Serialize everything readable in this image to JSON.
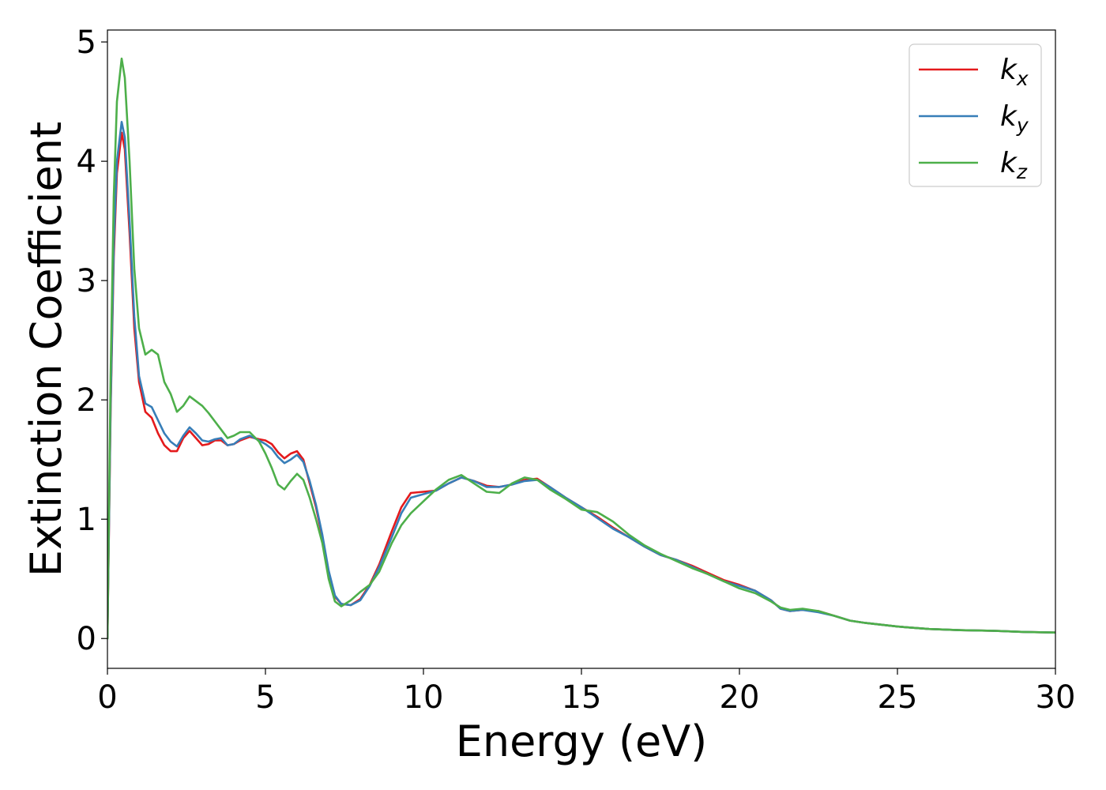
{
  "chart_data": {
    "type": "line",
    "title": "",
    "xlabel": "Energy (eV)",
    "ylabel": "Extinction Coefficient",
    "xlim": [
      0,
      30
    ],
    "ylim": [
      -0.25,
      5.1
    ],
    "xticks": [
      "0",
      "5",
      "10",
      "15",
      "20",
      "25",
      "30"
    ],
    "yticks": [
      "0",
      "1",
      "2",
      "3",
      "4",
      "5"
    ],
    "grid": false,
    "legend_position": "top-right",
    "series": [
      {
        "name": "k",
        "subscript": "x",
        "color": "#e41a1c",
        "x": [
          0,
          0.1,
          0.2,
          0.3,
          0.45,
          0.55,
          0.7,
          0.85,
          1.0,
          1.2,
          1.4,
          1.6,
          1.8,
          2.0,
          2.2,
          2.4,
          2.6,
          2.8,
          3.0,
          3.2,
          3.4,
          3.6,
          3.8,
          4.0,
          4.2,
          4.5,
          4.8,
          5.0,
          5.2,
          5.4,
          5.6,
          5.8,
          6.0,
          6.2,
          6.4,
          6.6,
          6.8,
          7.0,
          7.2,
          7.4,
          7.7,
          8.0,
          8.3,
          8.6,
          9.0,
          9.3,
          9.6,
          10.0,
          10.4,
          10.8,
          11.2,
          11.6,
          12.0,
          12.4,
          12.8,
          13.2,
          13.6,
          14.0,
          14.5,
          15.0,
          15.5,
          16.0,
          16.5,
          17.0,
          17.5,
          18.0,
          18.5,
          19.0,
          19.5,
          20.0,
          20.5,
          21.0,
          21.3,
          21.6,
          22.0,
          22.5,
          23.0,
          23.5,
          24.0,
          25.0,
          26.0,
          27.0,
          28.0,
          29.0,
          30.0
        ],
        "y": [
          0.0,
          1.9,
          3.2,
          3.9,
          4.24,
          4.1,
          3.4,
          2.6,
          2.15,
          1.9,
          1.85,
          1.72,
          1.62,
          1.57,
          1.57,
          1.68,
          1.74,
          1.68,
          1.62,
          1.63,
          1.66,
          1.66,
          1.62,
          1.63,
          1.66,
          1.69,
          1.67,
          1.66,
          1.63,
          1.56,
          1.51,
          1.55,
          1.57,
          1.5,
          1.3,
          1.1,
          0.85,
          0.55,
          0.35,
          0.29,
          0.28,
          0.33,
          0.45,
          0.62,
          0.9,
          1.1,
          1.22,
          1.23,
          1.24,
          1.3,
          1.35,
          1.32,
          1.28,
          1.27,
          1.29,
          1.33,
          1.34,
          1.27,
          1.18,
          1.1,
          1.02,
          0.93,
          0.85,
          0.77,
          0.7,
          0.66,
          0.61,
          0.55,
          0.49,
          0.45,
          0.4,
          0.32,
          0.25,
          0.23,
          0.24,
          0.23,
          0.19,
          0.15,
          0.13,
          0.1,
          0.08,
          0.07,
          0.065,
          0.055,
          0.05
        ]
      },
      {
        "name": "k",
        "subscript": "y",
        "color": "#377eb8",
        "x": [
          0,
          0.1,
          0.2,
          0.3,
          0.45,
          0.55,
          0.7,
          0.85,
          1.0,
          1.2,
          1.4,
          1.6,
          1.8,
          2.0,
          2.2,
          2.4,
          2.6,
          2.8,
          3.0,
          3.2,
          3.4,
          3.6,
          3.8,
          4.0,
          4.2,
          4.5,
          4.8,
          5.0,
          5.2,
          5.4,
          5.6,
          5.8,
          6.0,
          6.2,
          6.4,
          6.6,
          6.8,
          7.0,
          7.2,
          7.4,
          7.7,
          8.0,
          8.3,
          8.6,
          9.0,
          9.3,
          9.6,
          10.0,
          10.4,
          10.8,
          11.2,
          11.6,
          12.0,
          12.4,
          12.8,
          13.2,
          13.6,
          14.0,
          14.5,
          15.0,
          15.5,
          16.0,
          16.5,
          17.0,
          17.5,
          18.0,
          18.5,
          19.0,
          19.5,
          20.0,
          20.5,
          21.0,
          21.3,
          21.6,
          22.0,
          22.5,
          23.0,
          23.5,
          24.0,
          25.0,
          26.0,
          27.0,
          28.0,
          29.0,
          30.0
        ],
        "y": [
          0.0,
          1.95,
          3.3,
          4.0,
          4.33,
          4.2,
          3.5,
          2.7,
          2.2,
          1.97,
          1.94,
          1.83,
          1.72,
          1.65,
          1.61,
          1.7,
          1.77,
          1.72,
          1.66,
          1.65,
          1.67,
          1.68,
          1.62,
          1.63,
          1.67,
          1.7,
          1.66,
          1.63,
          1.59,
          1.52,
          1.47,
          1.5,
          1.54,
          1.48,
          1.32,
          1.12,
          0.87,
          0.57,
          0.36,
          0.29,
          0.28,
          0.32,
          0.44,
          0.6,
          0.85,
          1.05,
          1.18,
          1.21,
          1.24,
          1.3,
          1.35,
          1.32,
          1.27,
          1.27,
          1.29,
          1.32,
          1.33,
          1.27,
          1.18,
          1.1,
          1.01,
          0.92,
          0.85,
          0.77,
          0.7,
          0.66,
          0.6,
          0.54,
          0.48,
          0.44,
          0.4,
          0.32,
          0.25,
          0.23,
          0.24,
          0.22,
          0.19,
          0.15,
          0.13,
          0.1,
          0.08,
          0.07,
          0.065,
          0.055,
          0.05
        ]
      },
      {
        "name": "k",
        "subscript": "z",
        "color": "#4daf4a",
        "x": [
          0,
          0.1,
          0.2,
          0.3,
          0.45,
          0.55,
          0.7,
          0.85,
          1.0,
          1.2,
          1.4,
          1.6,
          1.8,
          2.0,
          2.2,
          2.4,
          2.6,
          2.8,
          3.0,
          3.2,
          3.4,
          3.6,
          3.8,
          4.0,
          4.2,
          4.5,
          4.8,
          5.0,
          5.2,
          5.4,
          5.6,
          5.8,
          6.0,
          6.2,
          6.4,
          6.6,
          6.8,
          7.0,
          7.2,
          7.4,
          7.7,
          8.0,
          8.3,
          8.6,
          9.0,
          9.3,
          9.6,
          10.0,
          10.4,
          10.8,
          11.2,
          11.6,
          12.0,
          12.4,
          12.8,
          13.2,
          13.6,
          14.0,
          14.5,
          15.0,
          15.5,
          16.0,
          16.5,
          17.0,
          17.5,
          18.0,
          18.5,
          19.0,
          19.5,
          20.0,
          20.5,
          21.0,
          21.3,
          21.6,
          22.0,
          22.5,
          23.0,
          23.5,
          24.0,
          25.0,
          26.0,
          27.0,
          28.0,
          29.0,
          30.0
        ],
        "y": [
          0.0,
          2.2,
          3.7,
          4.5,
          4.86,
          4.7,
          4.0,
          3.1,
          2.6,
          2.38,
          2.42,
          2.38,
          2.15,
          2.05,
          1.9,
          1.95,
          2.03,
          1.99,
          1.95,
          1.89,
          1.82,
          1.75,
          1.68,
          1.7,
          1.73,
          1.73,
          1.65,
          1.55,
          1.43,
          1.29,
          1.25,
          1.32,
          1.38,
          1.33,
          1.18,
          1.0,
          0.8,
          0.5,
          0.31,
          0.27,
          0.32,
          0.39,
          0.45,
          0.56,
          0.8,
          0.95,
          1.05,
          1.15,
          1.25,
          1.33,
          1.37,
          1.3,
          1.23,
          1.22,
          1.3,
          1.35,
          1.33,
          1.25,
          1.17,
          1.08,
          1.06,
          0.98,
          0.87,
          0.78,
          0.71,
          0.65,
          0.59,
          0.54,
          0.48,
          0.42,
          0.38,
          0.31,
          0.26,
          0.24,
          0.25,
          0.23,
          0.19,
          0.15,
          0.13,
          0.1,
          0.08,
          0.07,
          0.065,
          0.055,
          0.05
        ]
      }
    ]
  }
}
